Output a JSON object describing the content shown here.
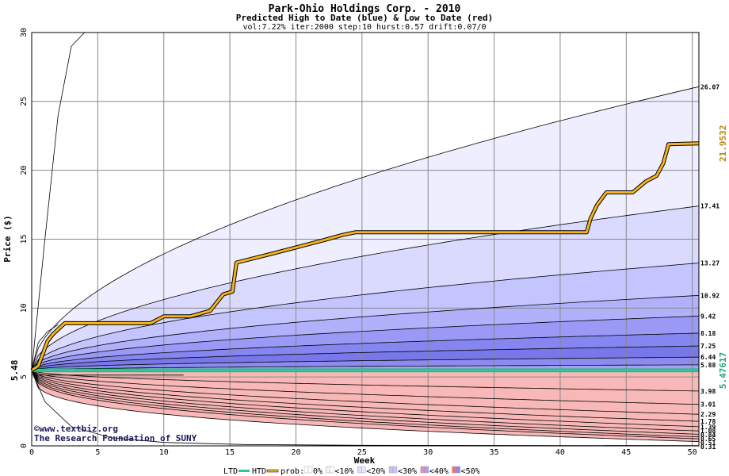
{
  "chart_data": {
    "type": "area",
    "title": "Park-Ohio Holdings Corp. - 2010",
    "subtitle": "Predicted High to Date (blue) &  Low to Date (red)",
    "params": "vol:7.22% iter:2000 step:10 hurst:0.57 drift:0.07/0",
    "xlabel": "Week",
    "ylabel": "Price ($)",
    "xlim": [
      0,
      50.5
    ],
    "ylim": [
      0,
      30
    ],
    "x_ticks": [
      0,
      5,
      10,
      15,
      20,
      25,
      30,
      35,
      40,
      45,
      50
    ],
    "y_ticks": [
      0,
      5,
      10,
      15,
      20,
      25,
      30
    ],
    "start_price_label": "5.48",
    "start_price": 5.48,
    "grid": true,
    "upper_right_labels": [
      "26.07",
      "17.41",
      "13.27",
      "10.92",
      "9.42",
      "8.18",
      "7.25",
      "6.44",
      "5.88"
    ],
    "upper_right_values": [
      26.07,
      17.41,
      13.27,
      10.92,
      9.42,
      8.18,
      7.25,
      6.44,
      5.88
    ],
    "lower_right_labels": [
      "3.98",
      "3.01",
      "2.29",
      "1.78",
      "1.39",
      "1.08",
      "0.84",
      "0.65",
      "0.51",
      "0.31"
    ],
    "lower_right_values": [
      3.98,
      3.01,
      2.29,
      1.78,
      1.39,
      1.08,
      0.84,
      0.65,
      0.51,
      0.31
    ],
    "htd_label": "21.9532",
    "ltd_label": "5.47617",
    "actual_high_to_date": {
      "x": [
        0,
        0.5,
        1.2,
        1.6,
        2.5,
        9,
        10,
        12,
        13.5,
        14.5,
        15.2,
        15.5,
        18,
        20,
        22,
        23.5,
        24.5,
        42,
        42.3,
        42.8,
        43.5,
        45.5,
        46.5,
        47.3,
        47.8,
        48.2,
        50.5
      ],
      "y": [
        5.48,
        5.8,
        7.6,
        8.1,
        8.9,
        8.9,
        9.4,
        9.4,
        9.8,
        11.0,
        11.2,
        13.3,
        13.9,
        14.4,
        14.9,
        15.3,
        15.5,
        15.5,
        16.5,
        17.5,
        18.4,
        18.4,
        19.2,
        19.6,
        20.5,
        21.9,
        21.95
      ]
    },
    "actual_low_to_date": 5.47617,
    "legend": {
      "ltd_label": "LTD",
      "htd_label": "HTD",
      "prob_label": "prob:",
      "items": [
        "0%",
        "<10%",
        "<20%",
        "<30%",
        "<40%",
        "<50%"
      ]
    },
    "colors": {
      "htd_line": "#f5b41e",
      "ltd_line": "#2fc79a",
      "htd_label": "#b8860b",
      "ltd_label": "#1aa37a",
      "grid": "#888888",
      "up_bands": [
        "#eeeeff",
        "#dadaff",
        "#c4c4ff",
        "#b0b0fb",
        "#9a9af6",
        "#8686f0",
        "#7878ea",
        "#8c8cf0",
        "#a2a2f4"
      ],
      "down_bands": [
        "#fff0f0",
        "#ffd6d6",
        "#fcc0c0",
        "#f8a8a8",
        "#f49494",
        "#f08080",
        "#ee7070",
        "#f18a8a",
        "#f5a0a0",
        "#f8b8b8"
      ]
    }
  },
  "watermark": {
    "line1": "©www.textbiz.org",
    "line2": "The Research Foundation of SUNY"
  }
}
